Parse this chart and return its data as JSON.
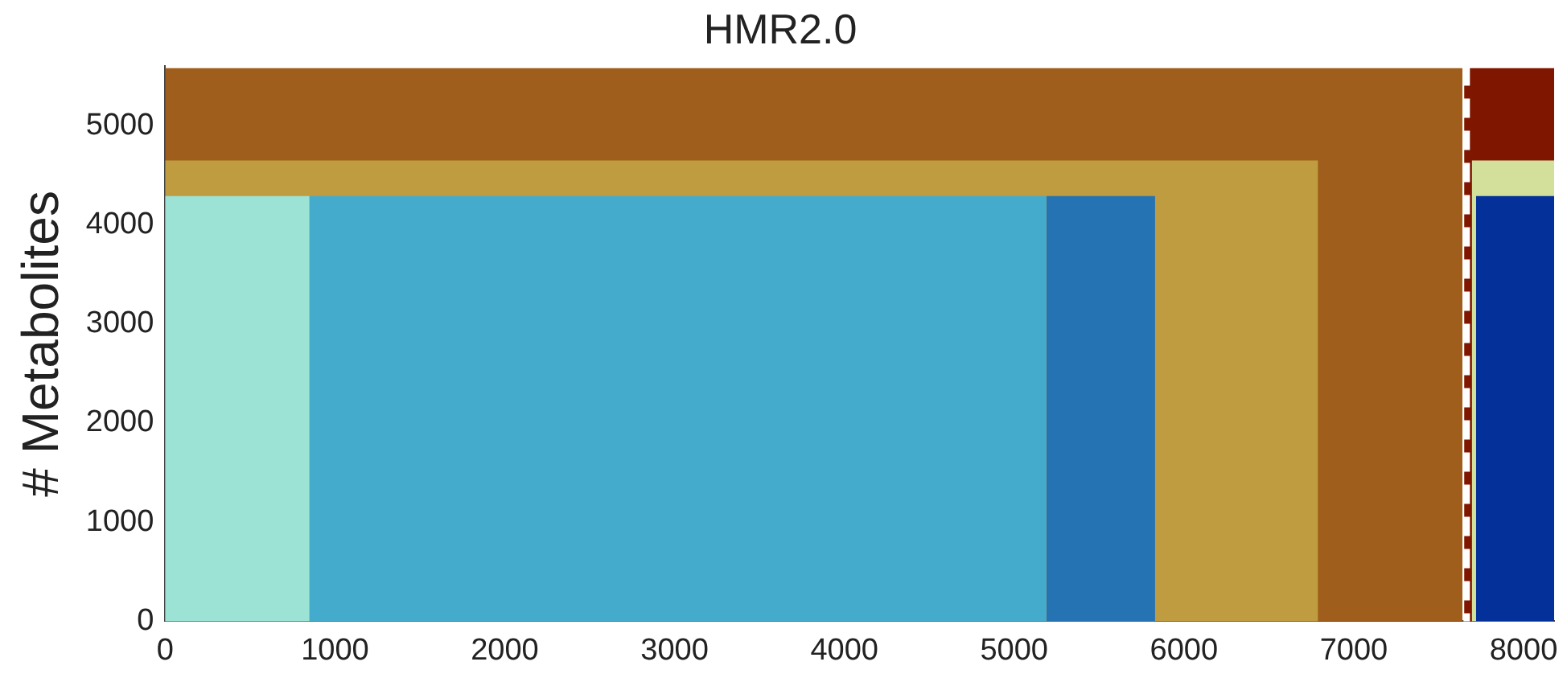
{
  "chart_data": {
    "type": "area",
    "title": "HMR2.0",
    "ylabel": "# Metabolites",
    "series": [
      {
        "x": [
          0,
          7640
        ],
        "values": [
          5580,
          5580
        ],
        "color": "#a05e1c"
      },
      {
        "x": [
          7650,
          8180
        ],
        "values": [
          5580,
          5580
        ],
        "color": "#7f1700"
      },
      {
        "x": [
          0,
          6790
        ],
        "values": [
          4650,
          4650
        ],
        "color": "#be9c3f"
      },
      {
        "x": [
          7695,
          8180
        ],
        "values": [
          4650,
          4650
        ],
        "color": "#d3e09b"
      },
      {
        "x": [
          0,
          850
        ],
        "values": [
          4290,
          4290
        ],
        "color": "#9de3d5"
      },
      {
        "x": [
          850,
          5190
        ],
        "values": [
          4290,
          4290
        ],
        "color": "#44abcc"
      },
      {
        "x": [
          5190,
          5830
        ],
        "values": [
          4290,
          4290
        ],
        "color": "#2673b3"
      },
      {
        "x": [
          7720,
          8180
        ],
        "values": [
          4290,
          4290
        ],
        "color": "#04309a"
      }
    ],
    "xlim": [
      0,
      8180
    ],
    "xticks": [
      0,
      1000,
      2000,
      3000,
      4000,
      5000,
      6000,
      7000,
      8000
    ],
    "ylim": [
      0,
      5600
    ],
    "yticks": [
      0,
      1000,
      2000,
      3000,
      4000,
      5000
    ],
    "ref_lines": [
      {
        "axis": "x",
        "value": 7665,
        "color": "#ffffff",
        "line_style": "dashed"
      }
    ],
    "grid": false,
    "legend": false
  }
}
